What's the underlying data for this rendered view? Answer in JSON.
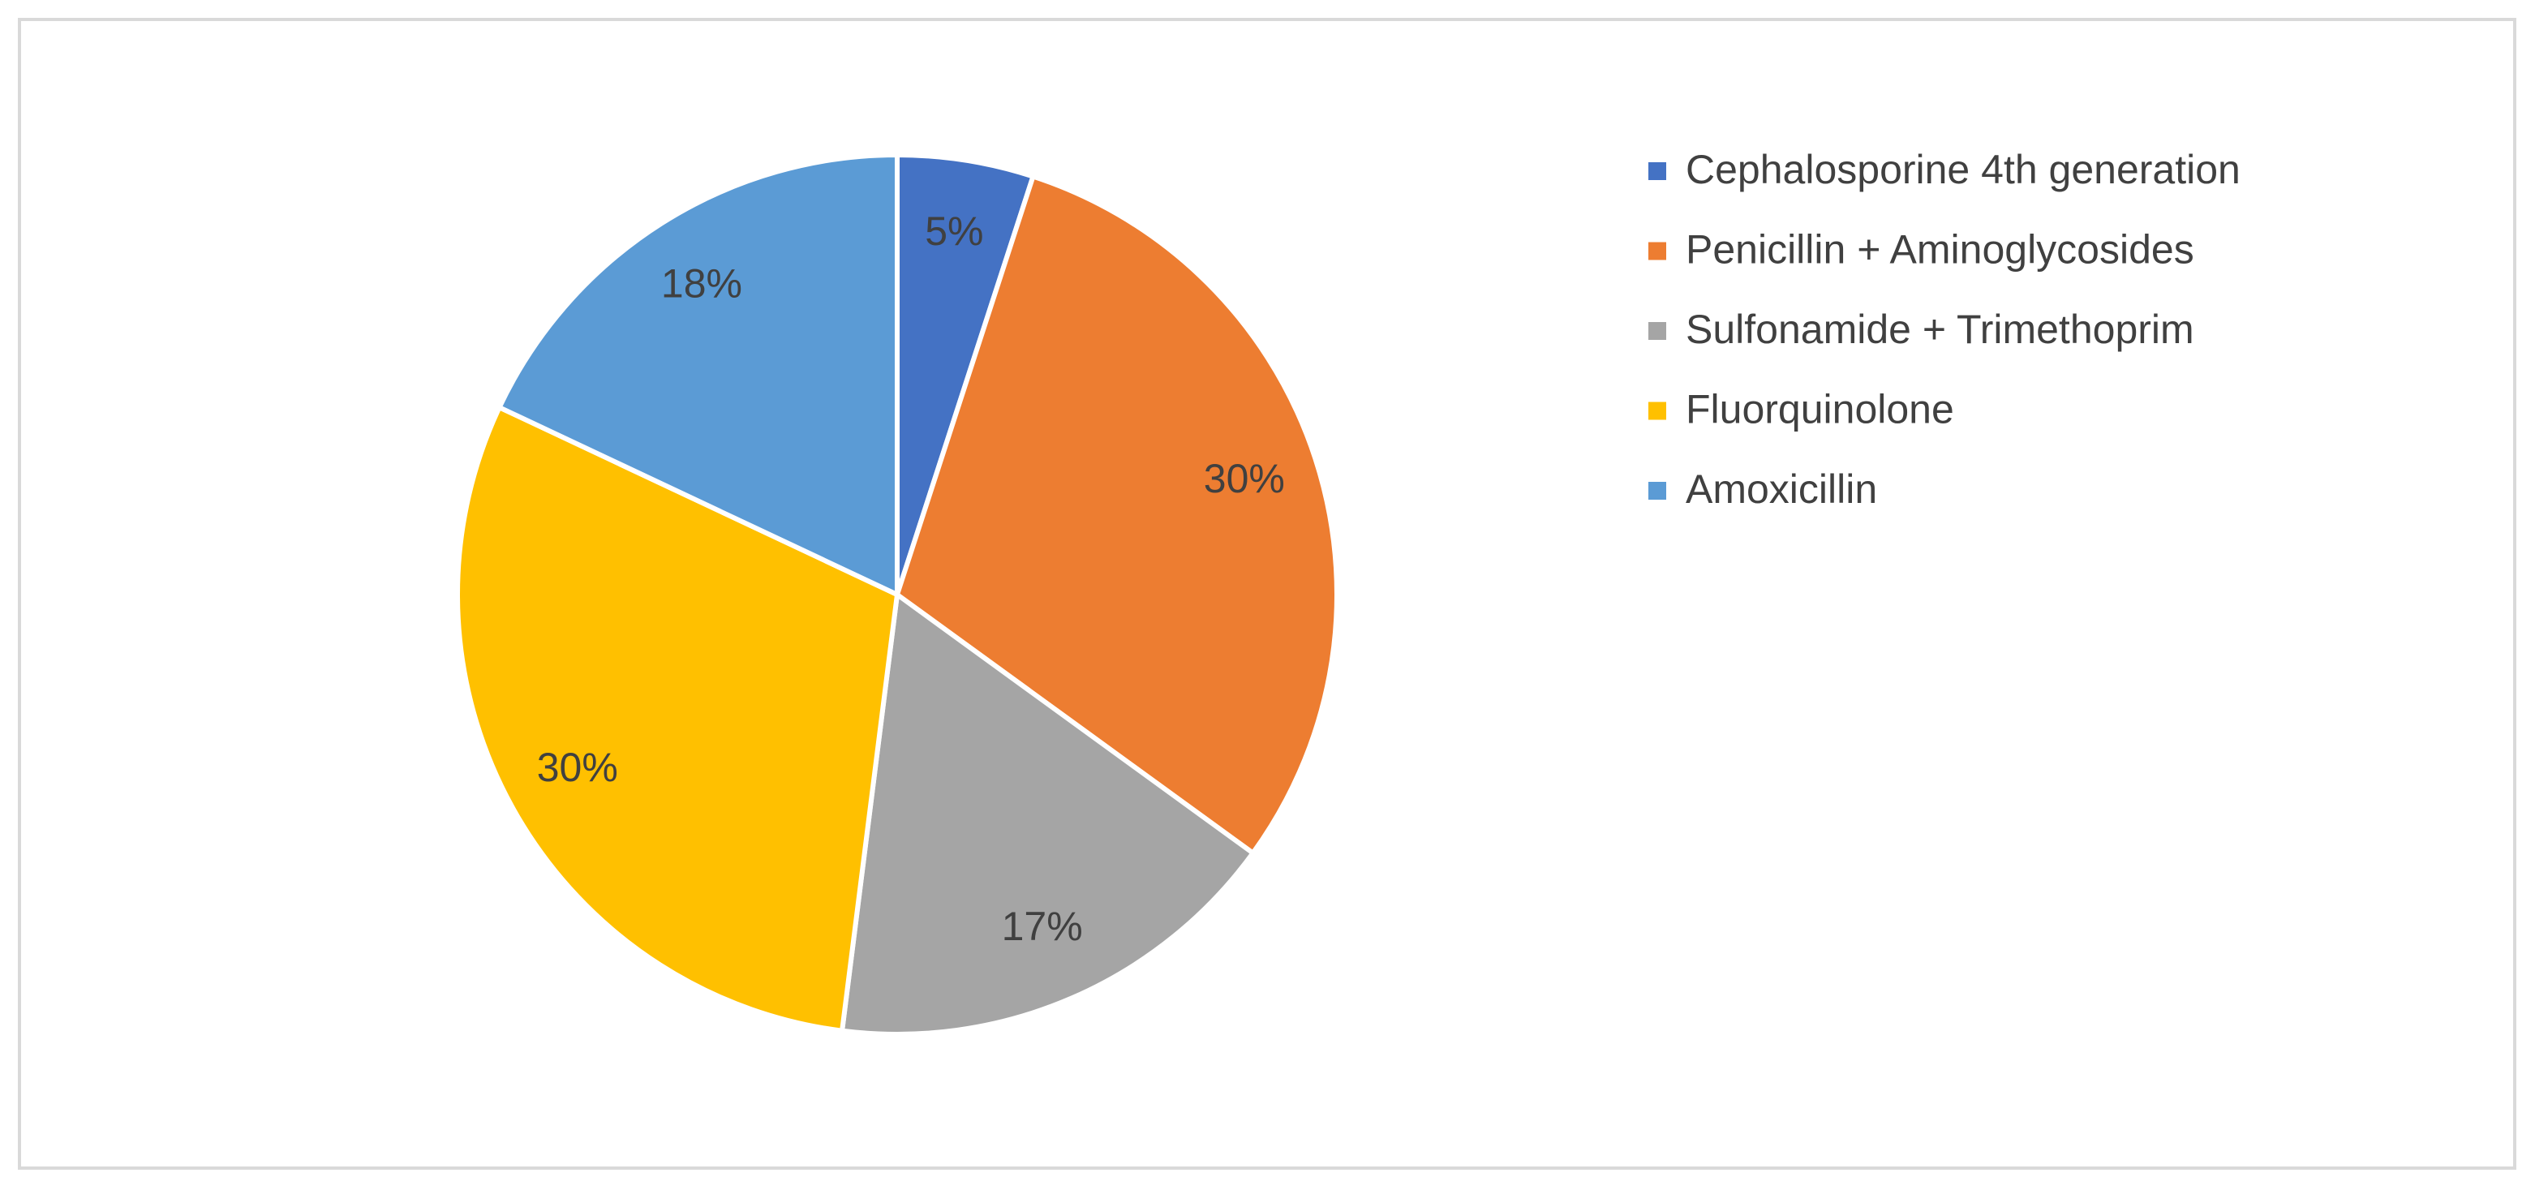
{
  "chart_data": {
    "type": "pie",
    "categories": [
      "Cephalosporine 4th generation",
      "Penicillin + Aminoglycosides",
      "Sulfonamide + Trimethoprim",
      "Fluorquinolone",
      "Amoxicillin"
    ],
    "values": [
      5,
      30,
      17,
      30,
      18
    ],
    "value_labels": [
      "5%",
      "30%",
      "17%",
      "30%",
      "18%"
    ],
    "colors": [
      "#4472c4",
      "#ed7d31",
      "#a5a5a5",
      "#ffc000",
      "#5b9bd5"
    ],
    "legend": "right"
  }
}
